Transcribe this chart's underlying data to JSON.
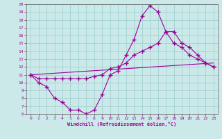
{
  "xlabel": "Windchill (Refroidissement éolien,°C)",
  "xlim": [
    -0.5,
    23.5
  ],
  "ylim": [
    6,
    20
  ],
  "xticks": [
    0,
    1,
    2,
    3,
    4,
    5,
    6,
    7,
    8,
    9,
    10,
    11,
    12,
    13,
    14,
    15,
    16,
    17,
    18,
    19,
    20,
    21,
    22,
    23
  ],
  "yticks": [
    6,
    7,
    8,
    9,
    10,
    11,
    12,
    13,
    14,
    15,
    16,
    17,
    18,
    19,
    20
  ],
  "bg_color": "#cce9e9",
  "grid_color": "#99cccc",
  "line_color": "#990099",
  "curve1_x": [
    0,
    1,
    2,
    3,
    4,
    5,
    6,
    7,
    8,
    9,
    10,
    11,
    12,
    13,
    14,
    15,
    16,
    17,
    18,
    19,
    20,
    21,
    22,
    23
  ],
  "curve1_y": [
    11.0,
    10.0,
    9.5,
    8.0,
    7.5,
    6.5,
    6.5,
    6.0,
    6.5,
    8.5,
    11.0,
    11.5,
    13.5,
    15.5,
    18.5,
    19.8,
    19.0,
    16.5,
    15.0,
    14.5,
    13.5,
    13.0,
    12.5,
    12.0
  ],
  "curve2_x": [
    0,
    1,
    2,
    3,
    4,
    5,
    6,
    7,
    8,
    9,
    10,
    11,
    12,
    13,
    14,
    15,
    16,
    17,
    18,
    19,
    20,
    21,
    22,
    23
  ],
  "curve2_y": [
    11.0,
    10.5,
    10.5,
    10.5,
    10.5,
    10.5,
    10.5,
    10.5,
    10.8,
    11.0,
    11.8,
    12.0,
    12.5,
    13.5,
    14.0,
    14.5,
    15.0,
    16.5,
    16.5,
    15.0,
    14.5,
    13.5,
    12.5,
    12.0
  ],
  "curve3_x": [
    0,
    23
  ],
  "curve3_y": [
    11.0,
    12.5
  ]
}
